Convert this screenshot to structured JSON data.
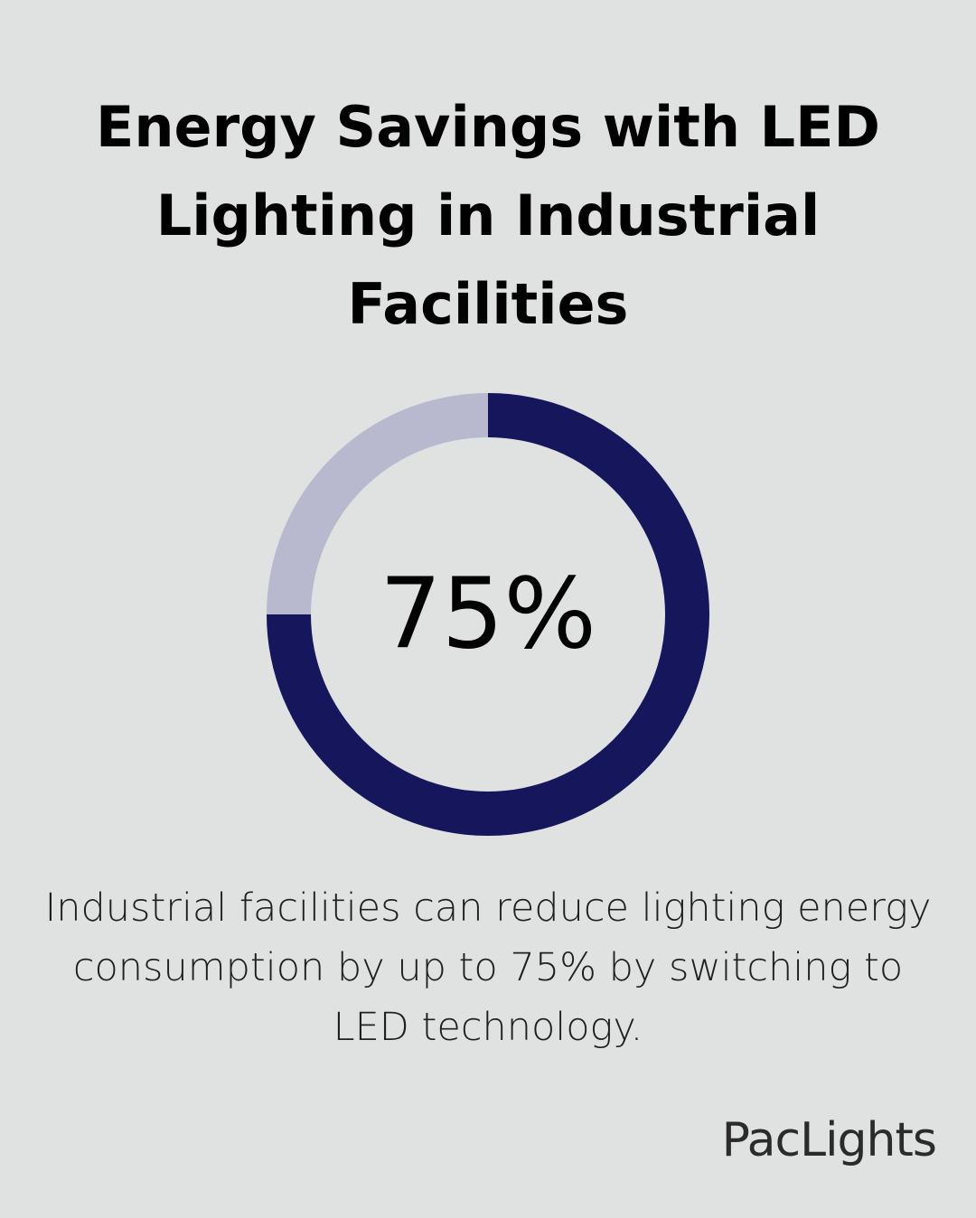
{
  "title": "Energy Savings with LED Lighting in Industrial Facilities",
  "chart_data": {
    "type": "pie",
    "variant": "donut",
    "values": [
      75,
      25
    ],
    "center_label": "75%",
    "colors": [
      "#16165c",
      "#b8b9cf"
    ]
  },
  "description": "Industrial facilities can reduce lighting energy consumption by up to 75% by switching to LED technology.",
  "logo": "PacLights"
}
